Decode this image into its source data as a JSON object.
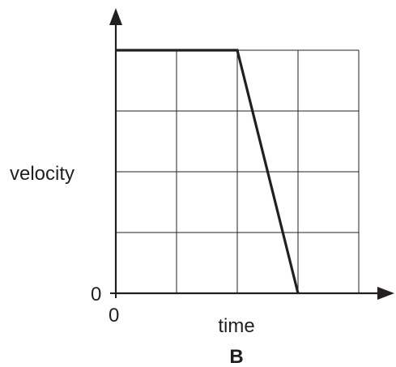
{
  "chart_data": {
    "type": "line",
    "panel_label": "B",
    "xlabel": "time",
    "ylabel": "velocity",
    "x_origin_label": "0",
    "y_origin_label": "0",
    "grid": true,
    "grid_cols": 4,
    "grid_rows": 4,
    "xlim": [
      0,
      4
    ],
    "ylim": [
      0,
      4
    ],
    "series": [
      {
        "x": [
          0,
          2,
          3
        ],
        "y": [
          4,
          4,
          0
        ]
      }
    ],
    "colors": {
      "line": "#231f20",
      "grid": "#231f20",
      "axes": "#231f20"
    }
  }
}
